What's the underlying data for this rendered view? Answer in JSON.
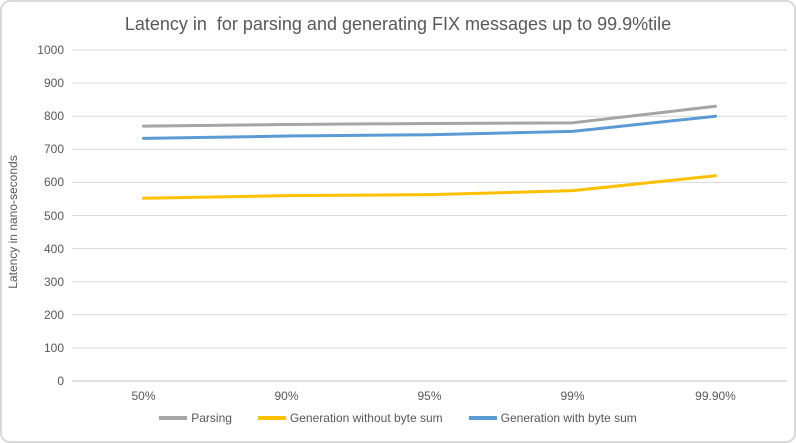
{
  "chart": {
    "title": "Latency in  for parsing and generating FIX messages up to 99.9%tile",
    "y_axis_title": "Latency in nano-seconds",
    "colors": {
      "text": "#595959",
      "gridline": "#D9D9D9",
      "axis_line": "#BFBFBF",
      "background": "#FFFFFF",
      "border": "#D9D9D9"
    }
  },
  "chart_data": {
    "type": "line",
    "title": "Latency in  for parsing and generating FIX messages up to 99.9%tile",
    "xlabel": "",
    "ylabel": "Latency in nano-seconds",
    "categories": [
      "50%",
      "90%",
      "95%",
      "99%",
      "99.90%"
    ],
    "series": [
      {
        "name": "Parsing",
        "color": "#A5A5A5",
        "values": [
          770,
          775,
          778,
          780,
          830
        ]
      },
      {
        "name": "Generation without byte sum",
        "color": "#FFC000",
        "values": [
          552,
          560,
          563,
          575,
          620
        ]
      },
      {
        "name": "Generation with byte sum",
        "color": "#5B9BD5",
        "values": [
          733,
          740,
          744,
          754,
          800
        ]
      }
    ],
    "ylim": [
      0,
      1000
    ],
    "ytick_step": 100,
    "grid": true,
    "legend_position": "bottom"
  }
}
